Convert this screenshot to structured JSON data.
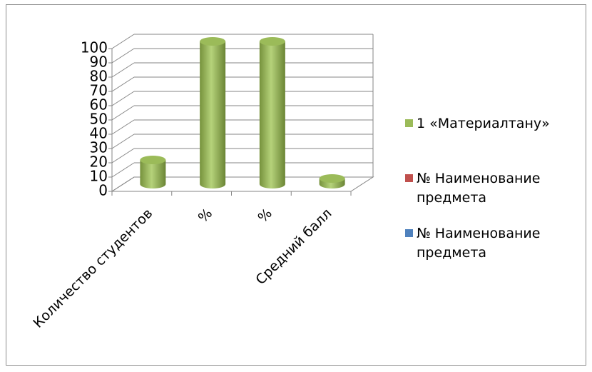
{
  "chart_data": {
    "type": "bar3d",
    "categories": [
      "Количество студентов",
      "%",
      "%",
      "Средний балл"
    ],
    "series": [
      {
        "name": "1 «Материалтану»",
        "color": "#9bbb59",
        "values": [
          17,
          100,
          100,
          4
        ]
      },
      {
        "name": "№ Наименование предмета",
        "color": "#c0504d",
        "values": [
          null,
          null,
          null,
          null
        ]
      },
      {
        "name": "№ Наименование предмета",
        "color": "#4f81bd",
        "values": [
          null,
          null,
          null,
          null
        ]
      }
    ],
    "ylim": [
      0,
      100
    ],
    "yticks": [
      0,
      10,
      20,
      30,
      40,
      50,
      60,
      70,
      80,
      90,
      100
    ],
    "grid": true,
    "legend": "right"
  }
}
